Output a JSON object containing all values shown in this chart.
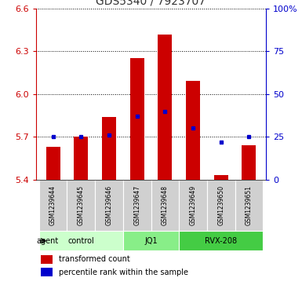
{
  "title": "GDS5340 / 7923707",
  "samples": [
    "GSM1239644",
    "GSM1239645",
    "GSM1239646",
    "GSM1239647",
    "GSM1239648",
    "GSM1239649",
    "GSM1239650",
    "GSM1239651"
  ],
  "bar_tops": [
    5.63,
    5.7,
    5.84,
    6.25,
    6.42,
    6.09,
    5.43,
    5.64
  ],
  "bar_base": 5.4,
  "percentile_ranks": [
    25,
    25,
    26,
    37,
    40,
    30,
    22,
    25
  ],
  "ylim": [
    5.4,
    6.6
  ],
  "yticks": [
    5.4,
    5.7,
    6.0,
    6.3,
    6.6
  ],
  "right_ylim": [
    0,
    100
  ],
  "right_yticks": [
    0,
    25,
    50,
    75,
    100
  ],
  "right_yticklabels": [
    "0",
    "25",
    "50",
    "75",
    "100%"
  ],
  "groups": [
    {
      "label": "control",
      "start": 0,
      "end": 3,
      "color": "#ccffcc"
    },
    {
      "label": "JQ1",
      "start": 3,
      "end": 5,
      "color": "#88ee88"
    },
    {
      "label": "RVX-208",
      "start": 5,
      "end": 8,
      "color": "#44cc44"
    }
  ],
  "agent_label": "agent",
  "bar_color": "#cc0000",
  "dot_color": "#0000cc",
  "bg_plot": "#ffffff",
  "bg_xticklabels": "#cccccc",
  "grid_color": "#000000",
  "title_color": "#333333",
  "left_tick_color": "#cc0000",
  "right_tick_color": "#0000cc"
}
